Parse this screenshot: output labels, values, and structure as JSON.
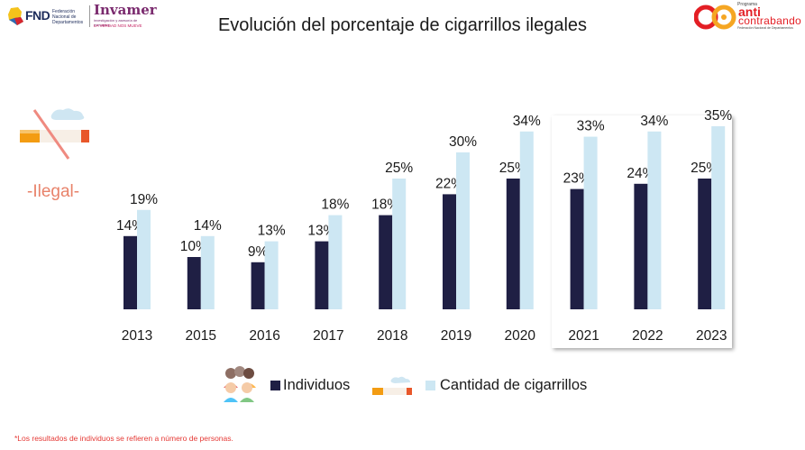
{
  "header": {
    "fnd_logo_text": "FND",
    "fnd_logo_sub": "Federación Nacional de Departamentos",
    "invamer_name": "Invamer",
    "invamer_sub": "investigación y asesoría de mercados",
    "invamer_tagline": "LA VERDAD NOS MUEVE",
    "anti_small": "Programa",
    "anti_big": "anti",
    "anti_contra": "contrabando",
    "anti_foot": "Federación Nacional de Departamentos"
  },
  "illustration_label": "-Ilegal-",
  "chart_data": {
    "type": "bar",
    "title": "Evolución del porcentaje de cigarrillos ilegales",
    "categories": [
      "2013",
      "2015",
      "2016",
      "2017",
      "2018",
      "2019",
      "2020",
      "2021",
      "2022",
      "2023"
    ],
    "series": [
      {
        "name": "Individuos",
        "values": [
          14,
          10,
          9,
          13,
          18,
          22,
          25,
          23,
          24,
          25
        ],
        "labels": [
          "14%",
          "10%",
          "9%",
          "13%",
          "18%",
          "22%",
          "25%",
          "23%",
          "24%",
          "25%"
        ],
        "color": "#1f1f44"
      },
      {
        "name": "Cantidad de cigarrillos",
        "values": [
          19,
          14,
          13,
          18,
          25,
          30,
          34,
          33,
          34,
          35
        ],
        "labels": [
          "19%",
          "14%",
          "13%",
          "18%",
          "25%",
          "30%",
          "34%",
          "33%",
          "34%",
          "35%"
        ],
        "color": "#cde7f3"
      }
    ],
    "ylim": [
      0,
      35
    ],
    "grid": false,
    "legend": "bottom",
    "highlighted_categories": [
      "2021",
      "2022",
      "2023"
    ]
  },
  "legend": {
    "individuos": "Individuos",
    "cigarrillos": "Cantidad de cigarrillos"
  },
  "footnote": "*Los resultados de individuos se refieren a número de personas."
}
